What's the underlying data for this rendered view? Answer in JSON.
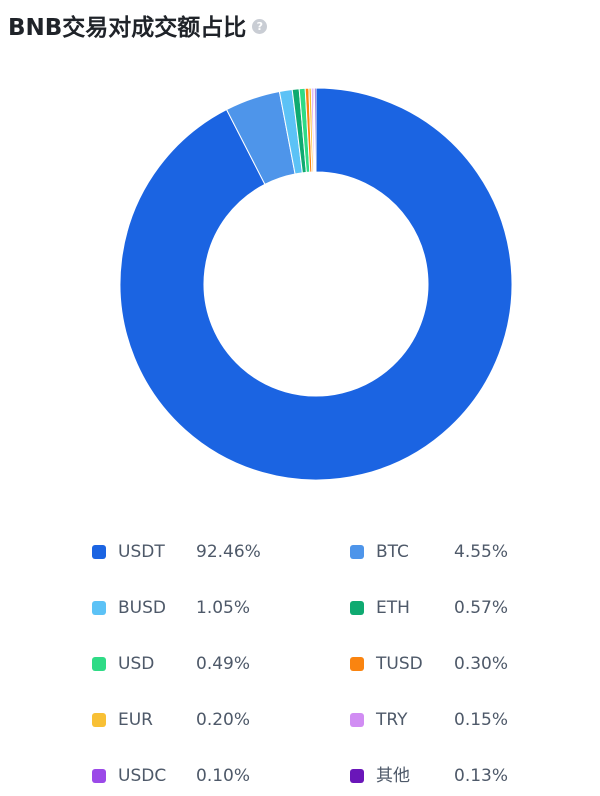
{
  "title": "BNB交易对成交额占比",
  "help_icon": "help-question-icon",
  "chart_data": {
    "type": "pie",
    "subtype": "donut",
    "title": "BNB交易对成交额占比",
    "series": [
      {
        "name": "USDT",
        "value": 92.46,
        "label": "92.46%",
        "color": "#1b64e2"
      },
      {
        "name": "BTC",
        "value": 4.55,
        "label": "4.55%",
        "color": "#4e95ea"
      },
      {
        "name": "BUSD",
        "value": 1.05,
        "label": "1.05%",
        "color": "#5cc2f6"
      },
      {
        "name": "ETH",
        "value": 0.57,
        "label": "0.57%",
        "color": "#0faa71"
      },
      {
        "name": "USD",
        "value": 0.49,
        "label": "0.49%",
        "color": "#2fdb86"
      },
      {
        "name": "TUSD",
        "value": 0.3,
        "label": "0.30%",
        "color": "#fa8410"
      },
      {
        "name": "EUR",
        "value": 0.2,
        "label": "0.20%",
        "color": "#f8c035"
      },
      {
        "name": "TRY",
        "value": 0.15,
        "label": "0.15%",
        "color": "#d18df3"
      },
      {
        "name": "USDC",
        "value": 0.1,
        "label": "0.10%",
        "color": "#9b49e8"
      },
      {
        "name": "其他",
        "value": 0.13,
        "label": "0.13%",
        "color": "#6a16b9"
      }
    ],
    "legend_position": "bottom"
  }
}
